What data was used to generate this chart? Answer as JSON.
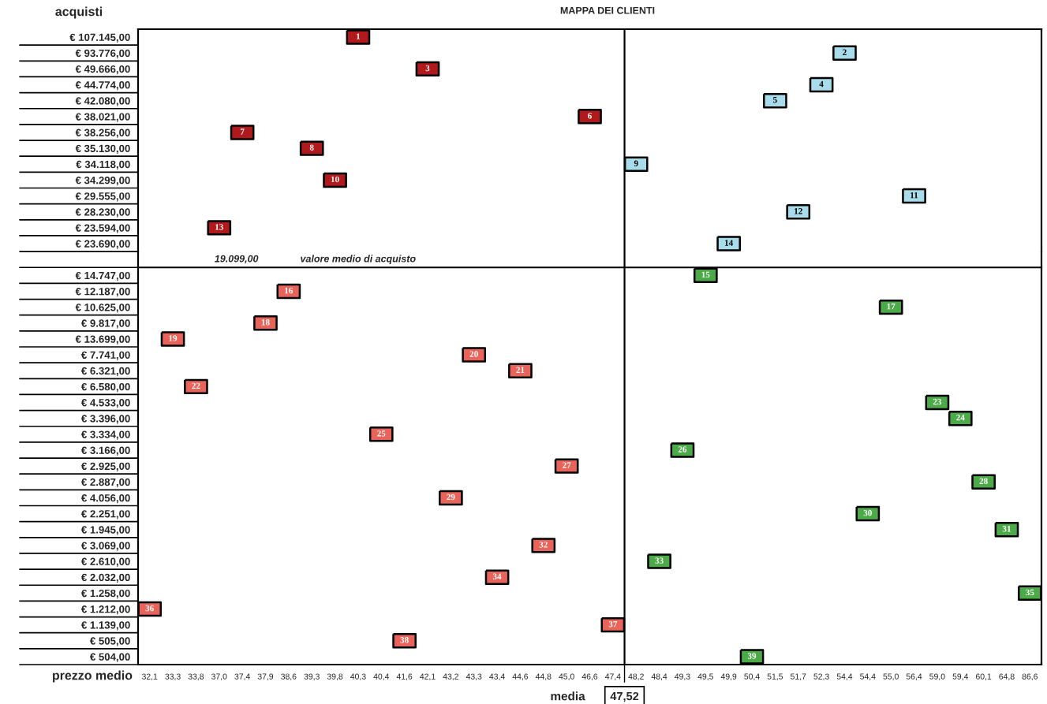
{
  "chart_data": [
    {
      "type": "heatmap",
      "title": "MAPPA DEI CLIENTI",
      "ylabel": "acquisti",
      "tick_labels": "y",
      "data_labels": true,
      "categories": [
        "32,1",
        "33,3",
        "33,8",
        "37,0",
        "37,4",
        "37,9",
        "38,6",
        "39,3",
        "39,8",
        "40,3",
        "40,4",
        "41,6",
        "42,1",
        "43,2",
        "43,3",
        "43,4",
        "44,6",
        "44,8",
        "45,0",
        "46,6",
        "47,4",
        "48,2",
        "48,4",
        "49,3",
        "49,5",
        "49,9",
        "50,4",
        "51,5",
        "51,7",
        "52,3",
        "54,4",
        "54,4",
        "55,0",
        "56,4",
        "59,0",
        "59,4",
        "60,1",
        "64,8",
        "86,6"
      ],
      "y_categories": [
        "€ 107.145,00",
        "€ 93.776,00",
        "€ 49.666,00",
        "€ 44.774,00",
        "€ 42.080,00",
        "€ 38.021,00",
        "€ 38.256,00",
        "€ 35.130,00",
        "€ 34.118,00",
        "€ 34.299,00",
        "€ 29.555,00",
        "€ 28.230,00",
        "€ 23.594,00",
        "€ 23.690,00"
      ],
      "cells": [
        [
          null,
          null,
          null,
          null,
          null,
          null,
          null,
          null,
          null,
          1,
          null,
          null,
          null,
          null,
          null,
          null,
          null,
          null,
          null,
          null,
          null,
          null,
          null,
          null,
          null,
          null,
          null,
          null,
          null,
          null,
          null,
          null,
          null,
          null,
          null,
          null,
          null,
          null,
          null
        ],
        [
          null,
          null,
          null,
          null,
          null,
          null,
          null,
          null,
          null,
          null,
          null,
          null,
          null,
          null,
          null,
          null,
          null,
          null,
          null,
          null,
          null,
          null,
          null,
          null,
          null,
          null,
          null,
          null,
          null,
          null,
          2,
          null,
          null,
          null,
          null,
          null,
          null,
          null,
          null
        ],
        [
          null,
          null,
          null,
          null,
          null,
          null,
          null,
          null,
          null,
          null,
          null,
          null,
          3,
          null,
          null,
          null,
          null,
          null,
          null,
          null,
          null,
          null,
          null,
          null,
          null,
          null,
          null,
          null,
          null,
          null,
          null,
          null,
          null,
          null,
          null,
          null,
          null,
          null,
          null
        ],
        [
          null,
          null,
          null,
          null,
          null,
          null,
          null,
          null,
          null,
          null,
          null,
          null,
          null,
          null,
          null,
          null,
          null,
          null,
          null,
          null,
          null,
          null,
          null,
          null,
          null,
          null,
          null,
          null,
          null,
          4,
          null,
          null,
          null,
          null,
          null,
          null,
          null,
          null,
          null
        ],
        [
          null,
          null,
          null,
          null,
          null,
          null,
          null,
          null,
          null,
          null,
          null,
          null,
          null,
          null,
          null,
          null,
          null,
          null,
          null,
          null,
          null,
          null,
          null,
          null,
          null,
          null,
          null,
          5,
          null,
          null,
          null,
          null,
          null,
          null,
          null,
          null,
          null,
          null,
          null
        ],
        [
          null,
          null,
          null,
          null,
          null,
          null,
          null,
          null,
          null,
          null,
          null,
          null,
          null,
          null,
          null,
          null,
          null,
          null,
          null,
          6,
          null,
          null,
          null,
          null,
          null,
          null,
          null,
          null,
          null,
          null,
          null,
          null,
          null,
          null,
          null,
          null,
          null,
          null,
          null
        ],
        [
          null,
          null,
          null,
          null,
          7,
          null,
          null,
          null,
          null,
          null,
          null,
          null,
          null,
          null,
          null,
          null,
          null,
          null,
          null,
          null,
          null,
          null,
          null,
          null,
          null,
          null,
          null,
          null,
          null,
          null,
          null,
          null,
          null,
          null,
          null,
          null,
          null,
          null,
          null
        ],
        [
          null,
          null,
          null,
          null,
          null,
          null,
          null,
          8,
          null,
          null,
          null,
          null,
          null,
          null,
          null,
          null,
          null,
          null,
          null,
          null,
          null,
          null,
          null,
          null,
          null,
          null,
          null,
          null,
          null,
          null,
          null,
          null,
          null,
          null,
          null,
          null,
          null,
          null,
          null
        ],
        [
          null,
          null,
          null,
          null,
          null,
          null,
          null,
          null,
          null,
          null,
          null,
          null,
          null,
          null,
          null,
          null,
          null,
          null,
          null,
          null,
          null,
          9,
          null,
          null,
          null,
          null,
          null,
          null,
          null,
          null,
          null,
          null,
          null,
          null,
          null,
          null,
          null,
          null,
          null
        ],
        [
          null,
          null,
          null,
          null,
          null,
          null,
          null,
          null,
          10,
          null,
          null,
          null,
          null,
          null,
          null,
          null,
          null,
          null,
          null,
          null,
          null,
          null,
          null,
          null,
          null,
          null,
          null,
          null,
          null,
          null,
          null,
          null,
          null,
          null,
          null,
          null,
          null,
          null,
          null
        ],
        [
          null,
          null,
          null,
          null,
          null,
          null,
          null,
          null,
          null,
          null,
          null,
          null,
          null,
          null,
          null,
          null,
          null,
          null,
          null,
          null,
          null,
          null,
          null,
          null,
          null,
          null,
          null,
          null,
          null,
          null,
          null,
          null,
          null,
          11,
          null,
          null,
          null,
          null,
          null
        ],
        [
          null,
          null,
          null,
          null,
          null,
          null,
          null,
          null,
          null,
          null,
          null,
          null,
          null,
          null,
          null,
          null,
          null,
          null,
          null,
          null,
          null,
          null,
          null,
          null,
          null,
          null,
          null,
          null,
          12,
          null,
          null,
          null,
          null,
          null,
          null,
          null,
          null,
          null,
          null
        ],
        [
          null,
          null,
          null,
          13,
          null,
          null,
          null,
          null,
          null,
          null,
          null,
          null,
          null,
          null,
          null,
          null,
          null,
          null,
          null,
          null,
          null,
          null,
          null,
          null,
          null,
          null,
          null,
          null,
          null,
          null,
          null,
          null,
          null,
          null,
          null,
          null,
          null,
          null,
          null
        ],
        [
          null,
          null,
          null,
          null,
          null,
          null,
          null,
          null,
          null,
          null,
          null,
          null,
          null,
          null,
          null,
          null,
          null,
          null,
          null,
          null,
          null,
          null,
          null,
          null,
          null,
          14,
          null,
          null,
          null,
          null,
          null,
          null,
          null,
          null,
          null,
          null,
          null,
          null,
          null
        ]
      ],
      "colors": [
        "#b01a1c",
        "#a8dcea",
        "#b01a1c",
        "#a8dcea",
        "#a8dcea",
        "#b01a1c",
        "#b01a1c",
        "#b01a1c",
        "#a8dcea",
        "#b01a1c",
        "#a8dcea",
        "#a8dcea",
        "#b01a1c",
        "#a8dcea"
      ],
      "annotations": [
        "19.099,00",
        "valore medio di acquisto"
      ]
    },
    {
      "type": "heatmap",
      "xlabel": "prezzo medio",
      "data_labels": true,
      "categories": [
        "32,1",
        "33,3",
        "33,8",
        "37,0",
        "37,4",
        "37,9",
        "38,6",
        "39,3",
        "39,8",
        "40,3",
        "40,4",
        "41,6",
        "42,1",
        "43,2",
        "43,3",
        "43,4",
        "44,6",
        "44,8",
        "45,0",
        "46,6",
        "47,4",
        "48,2",
        "48,4",
        "49,3",
        "49,5",
        "49,9",
        "50,4",
        "51,5",
        "51,7",
        "52,3",
        "54,4",
        "54,4",
        "55,0",
        "56,4",
        "59,0",
        "59,4",
        "60,1",
        "64,8",
        "86,6"
      ],
      "y_categories": [
        "€ 14.747,00",
        "€ 12.187,00",
        "€ 10.625,00",
        "€ 9.817,00",
        "€ 13.699,00",
        "€ 7.741,00",
        "€ 6.321,00",
        "€ 6.580,00",
        "€ 4.533,00",
        "€ 3.396,00",
        "€ 3.334,00",
        "€ 3.166,00",
        "€ 2.925,00",
        "€ 2.887,00",
        "€ 4.056,00",
        "€ 2.251,00",
        "€ 1.945,00",
        "€ 3.069,00",
        "€ 2.610,00",
        "€ 2.032,00",
        "€ 1.258,00",
        "€ 1.212,00",
        "€ 1.139,00",
        "€ 505,00",
        "€ 504,00"
      ],
      "cells": [
        [
          null,
          null,
          null,
          null,
          null,
          null,
          null,
          null,
          null,
          null,
          null,
          null,
          null,
          null,
          null,
          null,
          null,
          null,
          null,
          null,
          null,
          null,
          null,
          null,
          15,
          null,
          null,
          null,
          null,
          null,
          null,
          null,
          null,
          null,
          null,
          null,
          null,
          null,
          null
        ],
        [
          null,
          null,
          null,
          null,
          null,
          null,
          16,
          null,
          null,
          null,
          null,
          null,
          null,
          null,
          null,
          null,
          null,
          null,
          null,
          null,
          null,
          null,
          null,
          null,
          null,
          null,
          null,
          null,
          null,
          null,
          null,
          null,
          null,
          null,
          null,
          null,
          null,
          null,
          null
        ],
        [
          null,
          null,
          null,
          null,
          null,
          null,
          null,
          null,
          null,
          null,
          null,
          null,
          null,
          null,
          null,
          null,
          null,
          null,
          null,
          null,
          null,
          null,
          null,
          null,
          null,
          null,
          null,
          null,
          null,
          null,
          null,
          null,
          17,
          null,
          null,
          null,
          null,
          null,
          null
        ],
        [
          null,
          null,
          null,
          null,
          null,
          18,
          null,
          null,
          null,
          null,
          null,
          null,
          null,
          null,
          null,
          null,
          null,
          null,
          null,
          null,
          null,
          null,
          null,
          null,
          null,
          null,
          null,
          null,
          null,
          null,
          null,
          null,
          null,
          null,
          null,
          null,
          null,
          null,
          null
        ],
        [
          null,
          19,
          null,
          null,
          null,
          null,
          null,
          null,
          null,
          null,
          null,
          null,
          null,
          null,
          null,
          null,
          null,
          null,
          null,
          null,
          null,
          null,
          null,
          null,
          null,
          null,
          null,
          null,
          null,
          null,
          null,
          null,
          null,
          null,
          null,
          null,
          null,
          null,
          null
        ],
        [
          null,
          null,
          null,
          null,
          null,
          null,
          null,
          null,
          null,
          null,
          null,
          null,
          null,
          null,
          20,
          null,
          null,
          null,
          null,
          null,
          null,
          null,
          null,
          null,
          null,
          null,
          null,
          null,
          null,
          null,
          null,
          null,
          null,
          null,
          null,
          null,
          null,
          null,
          null
        ],
        [
          null,
          null,
          null,
          null,
          null,
          null,
          null,
          null,
          null,
          null,
          null,
          null,
          null,
          null,
          null,
          null,
          21,
          null,
          null,
          null,
          null,
          null,
          null,
          null,
          null,
          null,
          null,
          null,
          null,
          null,
          null,
          null,
          null,
          null,
          null,
          null,
          null,
          null,
          null
        ],
        [
          null,
          null,
          22,
          null,
          null,
          null,
          null,
          null,
          null,
          null,
          null,
          null,
          null,
          null,
          null,
          null,
          null,
          null,
          null,
          null,
          null,
          null,
          null,
          null,
          null,
          null,
          null,
          null,
          null,
          null,
          null,
          null,
          null,
          null,
          null,
          null,
          null,
          null,
          null
        ],
        [
          null,
          null,
          null,
          null,
          null,
          null,
          null,
          null,
          null,
          null,
          null,
          null,
          null,
          null,
          null,
          null,
          null,
          null,
          null,
          null,
          null,
          null,
          null,
          null,
          null,
          null,
          null,
          null,
          null,
          null,
          null,
          null,
          null,
          null,
          23,
          null,
          null,
          null,
          null
        ],
        [
          null,
          null,
          null,
          null,
          null,
          null,
          null,
          null,
          null,
          null,
          null,
          null,
          null,
          null,
          null,
          null,
          null,
          null,
          null,
          null,
          null,
          null,
          null,
          null,
          null,
          null,
          null,
          null,
          null,
          null,
          null,
          null,
          null,
          null,
          null,
          24,
          null,
          null,
          null
        ],
        [
          null,
          null,
          null,
          null,
          null,
          null,
          null,
          null,
          null,
          null,
          25,
          null,
          null,
          null,
          null,
          null,
          null,
          null,
          null,
          null,
          null,
          null,
          null,
          null,
          null,
          null,
          null,
          null,
          null,
          null,
          null,
          null,
          null,
          null,
          null,
          null,
          null,
          null,
          null
        ],
        [
          null,
          null,
          null,
          null,
          null,
          null,
          null,
          null,
          null,
          null,
          null,
          null,
          null,
          null,
          null,
          null,
          null,
          null,
          null,
          null,
          null,
          null,
          null,
          26,
          null,
          null,
          null,
          null,
          null,
          null,
          null,
          null,
          null,
          null,
          null,
          null,
          null,
          null,
          null
        ],
        [
          null,
          null,
          null,
          null,
          null,
          null,
          null,
          null,
          null,
          null,
          null,
          null,
          null,
          null,
          null,
          null,
          null,
          null,
          27,
          null,
          null,
          null,
          null,
          null,
          null,
          null,
          null,
          null,
          null,
          null,
          null,
          null,
          null,
          null,
          null,
          null,
          null,
          null,
          null
        ],
        [
          null,
          null,
          null,
          null,
          null,
          null,
          null,
          null,
          null,
          null,
          null,
          null,
          null,
          null,
          null,
          null,
          null,
          null,
          null,
          null,
          null,
          null,
          null,
          null,
          null,
          null,
          null,
          null,
          null,
          null,
          null,
          null,
          null,
          null,
          null,
          null,
          28,
          null,
          null
        ],
        [
          null,
          null,
          null,
          null,
          null,
          null,
          null,
          null,
          null,
          null,
          null,
          null,
          null,
          29,
          null,
          null,
          null,
          null,
          null,
          null,
          null,
          null,
          null,
          null,
          null,
          null,
          null,
          null,
          null,
          null,
          null,
          null,
          null,
          null,
          null,
          null,
          null,
          null,
          null
        ],
        [
          null,
          null,
          null,
          null,
          null,
          null,
          null,
          null,
          null,
          null,
          null,
          null,
          null,
          null,
          null,
          null,
          null,
          null,
          null,
          null,
          null,
          null,
          null,
          null,
          null,
          null,
          null,
          null,
          null,
          null,
          null,
          30,
          null,
          null,
          null,
          null,
          null,
          null,
          null
        ],
        [
          null,
          null,
          null,
          null,
          null,
          null,
          null,
          null,
          null,
          null,
          null,
          null,
          null,
          null,
          null,
          null,
          null,
          null,
          null,
          null,
          null,
          null,
          null,
          null,
          null,
          null,
          null,
          null,
          null,
          null,
          null,
          null,
          null,
          null,
          null,
          null,
          null,
          31,
          null
        ],
        [
          null,
          null,
          null,
          null,
          null,
          null,
          null,
          null,
          null,
          null,
          null,
          null,
          null,
          null,
          null,
          null,
          null,
          32,
          null,
          null,
          null,
          null,
          null,
          null,
          null,
          null,
          null,
          null,
          null,
          null,
          null,
          null,
          null,
          null,
          null,
          null,
          null,
          null,
          null
        ],
        [
          null,
          null,
          null,
          null,
          null,
          null,
          null,
          null,
          null,
          null,
          null,
          null,
          null,
          null,
          null,
          null,
          null,
          null,
          null,
          null,
          null,
          null,
          33,
          null,
          null,
          null,
          null,
          null,
          null,
          null,
          null,
          null,
          null,
          null,
          null,
          null,
          null,
          null,
          null
        ],
        [
          null,
          null,
          null,
          null,
          null,
          null,
          null,
          null,
          null,
          null,
          null,
          null,
          null,
          null,
          null,
          34,
          null,
          null,
          null,
          null,
          null,
          null,
          null,
          null,
          null,
          null,
          null,
          null,
          null,
          null,
          null,
          null,
          null,
          null,
          null,
          null,
          null,
          null,
          null
        ],
        [
          null,
          null,
          null,
          null,
          null,
          null,
          null,
          null,
          null,
          null,
          null,
          null,
          null,
          null,
          null,
          null,
          null,
          null,
          null,
          null,
          null,
          null,
          null,
          null,
          null,
          null,
          null,
          null,
          null,
          null,
          null,
          null,
          null,
          null,
          null,
          null,
          null,
          null,
          35
        ],
        [
          36,
          null,
          null,
          null,
          null,
          null,
          null,
          null,
          null,
          null,
          null,
          null,
          null,
          null,
          null,
          null,
          null,
          null,
          null,
          null,
          null,
          null,
          null,
          null,
          null,
          null,
          null,
          null,
          null,
          null,
          null,
          null,
          null,
          null,
          null,
          null,
          null,
          null,
          null
        ],
        [
          null,
          null,
          null,
          null,
          null,
          null,
          null,
          null,
          null,
          null,
          null,
          null,
          null,
          null,
          null,
          null,
          null,
          null,
          null,
          null,
          37,
          null,
          null,
          null,
          null,
          null,
          null,
          null,
          null,
          null,
          null,
          null,
          null,
          null,
          null,
          null,
          null,
          null,
          null
        ],
        [
          null,
          null,
          null,
          null,
          null,
          null,
          null,
          null,
          null,
          null,
          null,
          38,
          null,
          null,
          null,
          null,
          null,
          null,
          null,
          null,
          null,
          null,
          null,
          null,
          null,
          null,
          null,
          null,
          null,
          null,
          null,
          null,
          null,
          null,
          null,
          null,
          null,
          null,
          null
        ],
        [
          null,
          null,
          null,
          null,
          null,
          null,
          null,
          null,
          null,
          null,
          null,
          null,
          null,
          null,
          null,
          null,
          null,
          null,
          null,
          null,
          null,
          null,
          null,
          null,
          null,
          null,
          39,
          null,
          null,
          null,
          null,
          null,
          null,
          null,
          null,
          null,
          null,
          null,
          null
        ]
      ],
      "colors": [
        "#4cab48",
        "#e8645a",
        "#4cab48",
        "#e8645a",
        "#e8645a",
        "#e8645a",
        "#e8645a",
        "#e8645a",
        "#4cab48",
        "#4cab48",
        "#e8645a",
        "#4cab48",
        "#e8645a",
        "#4cab48",
        "#e8645a",
        "#4cab48",
        "#4cab48",
        "#e8645a",
        "#4cab48",
        "#e8645a",
        "#4cab48",
        "#e8645a",
        "#e8645a",
        "#e8645a",
        "#4cab48"
      ],
      "annotations": [
        "media",
        "47,52"
      ]
    }
  ]
}
